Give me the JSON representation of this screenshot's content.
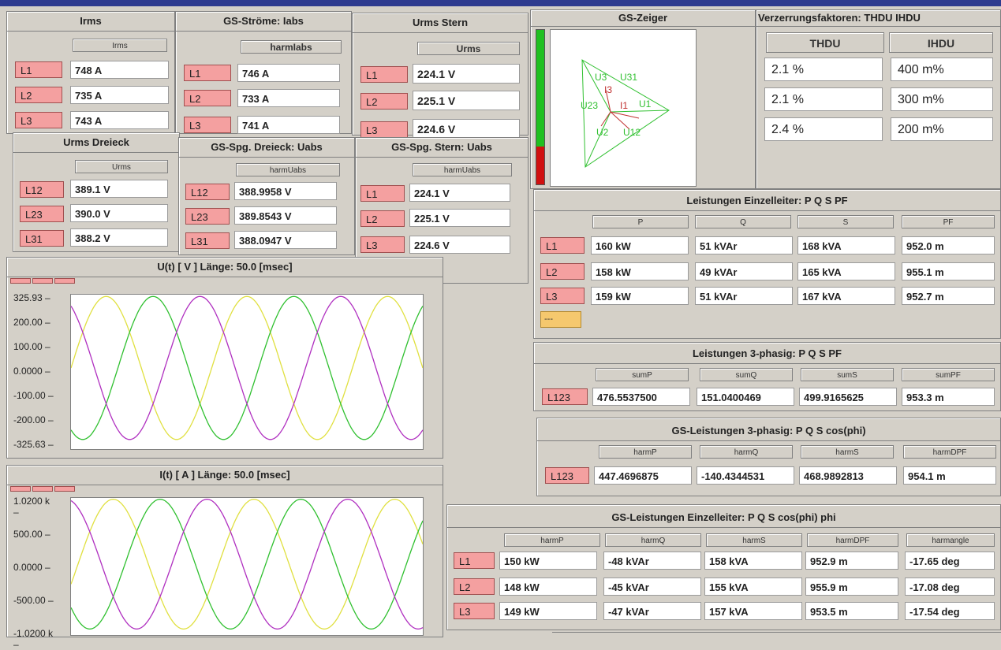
{
  "irms": {
    "title": "Irms",
    "header": "Irms",
    "rows": [
      {
        "label": "L1",
        "value": "748 A"
      },
      {
        "label": "L2",
        "value": "735 A"
      },
      {
        "label": "L3",
        "value": "743 A"
      }
    ]
  },
  "gs_stroeme": {
    "title": "GS-Ströme: Iabs",
    "header": "harmIabs",
    "rows": [
      {
        "label": "L1",
        "value": "746 A"
      },
      {
        "label": "L2",
        "value": "733 A"
      },
      {
        "label": "L3",
        "value": "741 A"
      }
    ]
  },
  "urms_stern": {
    "title": "Urms   Stern",
    "header": "Urms",
    "rows": [
      {
        "label": "L1",
        "value": "224.1 V"
      },
      {
        "label": "L2",
        "value": "225.1 V"
      },
      {
        "label": "L3",
        "value": "224.6 V"
      }
    ]
  },
  "urms_dreieck": {
    "title": "Urms   Dreieck",
    "header": "Urms",
    "rows": [
      {
        "label": "L12",
        "value": "389.1 V"
      },
      {
        "label": "L23",
        "value": "390.0 V"
      },
      {
        "label": "L31",
        "value": "388.2 V"
      }
    ]
  },
  "gs_spg_dreieck": {
    "title": "GS-Spg. Dreieck: Uabs",
    "header": "harmUabs",
    "rows": [
      {
        "label": "L12",
        "value": "388.9958 V"
      },
      {
        "label": "L23",
        "value": "389.8543 V"
      },
      {
        "label": "L31",
        "value": "388.0947 V"
      }
    ]
  },
  "gs_spg_stern": {
    "title": "GS-Spg. Stern: Uabs",
    "header": "harmUabs",
    "rows": [
      {
        "label": "L1",
        "value": "224.1 V"
      },
      {
        "label": "L2",
        "value": "225.1 V"
      },
      {
        "label": "L3",
        "value": "224.6 V"
      }
    ]
  },
  "gs_zeiger": {
    "title": "GS-Zeiger",
    "labels": {
      "u3": "U3",
      "u31": "U31",
      "i3": "I3",
      "u23": "U23",
      "i1": "I1",
      "u1": "U1",
      "u2": "U2",
      "u12": "U12"
    }
  },
  "verzerrung": {
    "title": "Verzerrungsfaktoren: THDU IHDU",
    "headers": [
      "THDU",
      "IHDU"
    ],
    "rows": [
      [
        "2.1 %",
        "400 m%"
      ],
      [
        "2.1 %",
        "300 m%"
      ],
      [
        "2.4 %",
        "200 m%"
      ]
    ]
  },
  "leist_einzel": {
    "title": "Leistungen Einzelleiter: P Q S PF",
    "headers": [
      "P",
      "Q",
      "S",
      "PF"
    ],
    "rows": [
      {
        "label": "L1",
        "values": [
          "160 kW",
          "51 kVAr",
          "168 kVA",
          "952.0 m"
        ]
      },
      {
        "label": "L2",
        "values": [
          "158 kW",
          "49 kVAr",
          "165 kVA",
          "955.1 m"
        ]
      },
      {
        "label": "L3",
        "values": [
          "159 kW",
          "51 kVAr",
          "167 kVA",
          "952.7 m"
        ]
      }
    ],
    "extra": "---"
  },
  "leist_3ph": {
    "title": "Leistungen 3-phasig: P Q S PF",
    "headers": [
      "sumP",
      "sumQ",
      "sumS",
      "sumPF"
    ],
    "row": {
      "label": "L123",
      "values": [
        "476.5537500",
        "151.0400469",
        "499.9165625",
        "953.3 m"
      ]
    }
  },
  "gs_leist_3ph": {
    "title": "GS-Leistungen 3-phasig: P Q S cos(phi)",
    "headers": [
      "harmP",
      "harmQ",
      "harmS",
      "harmDPF"
    ],
    "row": {
      "label": "L123",
      "values": [
        "447.4696875",
        "-140.4344531",
        "468.9892813",
        "954.1 m"
      ]
    }
  },
  "gs_leist_einzel": {
    "title": "GS-Leistungen Einzelleiter: P Q S cos(phi) phi",
    "headers": [
      "harmP",
      "harmQ",
      "harmS",
      "harmDPF",
      "harmangle"
    ],
    "rows": [
      {
        "label": "L1",
        "values": [
          "150 kW",
          "-48 kVAr",
          "158 kVA",
          "952.9 m",
          "-17.65 deg"
        ]
      },
      {
        "label": "L2",
        "values": [
          "148 kW",
          "-45 kVAr",
          "155 kVA",
          "955.9 m",
          "-17.08 deg"
        ]
      },
      {
        "label": "L3",
        "values": [
          "149 kW",
          "-47 kVAr",
          "157 kVA",
          "953.5 m",
          "-17.54 deg"
        ]
      }
    ]
  },
  "ut_chart": {
    "title": "U(t) [ V ]   Länge: 50.0 [msec]",
    "yticks": [
      "325.93",
      "200.00",
      "100.00",
      "0.0000",
      "-100.00",
      "-200.00",
      "-325.63"
    ]
  },
  "it_chart": {
    "title": "I(t) [ A ]   Länge: 50.0 [msec]",
    "yticks": [
      "1.0200 k",
      "500.00",
      "0.0000",
      "-500.00",
      "-1.0200 k"
    ]
  },
  "chart_data": [
    {
      "type": "line",
      "title": "U(t) [ V ]   Länge: 50.0 [msec]",
      "ylim": [
        -325.63,
        325.93
      ],
      "series": [
        {
          "name": "",
          "color": "#e0e040",
          "amplitude": 318,
          "phase_deg": 0
        },
        {
          "name": "",
          "color": "#30c030",
          "amplitude": 318,
          "phase_deg": -120
        },
        {
          "name": "",
          "color": "#b030c0",
          "amplitude": 318,
          "phase_deg": 120
        }
      ],
      "periods": 2.5
    },
    {
      "type": "line",
      "title": "I(t) [ A ]   Länge: 50.0 [msec]",
      "ylim": [
        -1020,
        1020
      ],
      "series": [
        {
          "name": "",
          "color": "#e0e040",
          "amplitude": 1000,
          "phase_deg": -18
        },
        {
          "name": "",
          "color": "#30c030",
          "amplitude": 1000,
          "phase_deg": -138
        },
        {
          "name": "",
          "color": "#b030c0",
          "amplitude": 1000,
          "phase_deg": 102
        }
      ],
      "periods": 2.5
    }
  ]
}
